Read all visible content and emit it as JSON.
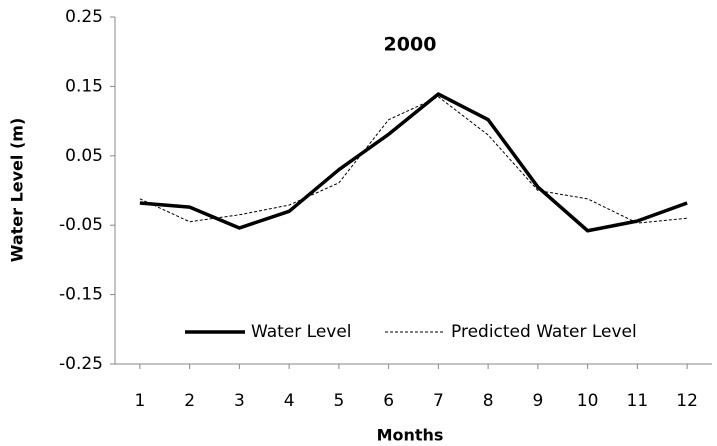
{
  "chart_data": {
    "type": "line",
    "title": "2000",
    "x_label": "Months",
    "y_label": "Water Level (m)",
    "x": [
      1,
      2,
      3,
      4,
      5,
      6,
      7,
      8,
      9,
      10,
      11,
      12
    ],
    "series": [
      {
        "name": "Water Level",
        "color": "#000000",
        "dash": false,
        "values": [
          -0.018,
          -0.024,
          -0.054,
          -0.03,
          0.03,
          0.081,
          0.139,
          0.102,
          0.005,
          -0.058,
          -0.044,
          -0.018
        ]
      },
      {
        "name": "Predicted Water Level",
        "color": "#000000",
        "dash": true,
        "values": [
          -0.012,
          -0.045,
          -0.035,
          -0.021,
          0.011,
          0.102,
          0.135,
          0.08,
          0.0,
          -0.012,
          -0.047,
          -0.04
        ]
      }
    ],
    "xlim": [
      0.5,
      12.5
    ],
    "xticks": [
      1,
      2,
      3,
      4,
      5,
      6,
      7,
      8,
      9,
      10,
      11,
      12
    ],
    "ylim": [
      -0.25,
      0.25
    ],
    "yticks": [
      -0.25,
      -0.15,
      -0.05,
      0.05,
      0.15,
      0.25
    ],
    "grid": false,
    "legend": "bottom"
  }
}
